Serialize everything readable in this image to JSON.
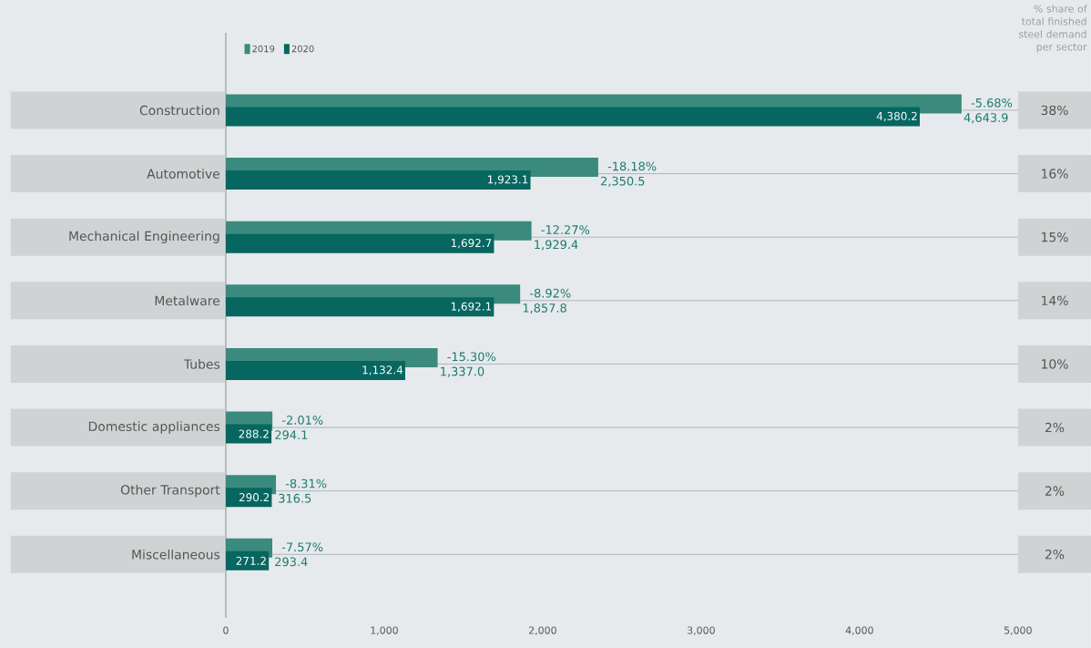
{
  "chart_data": {
    "type": "bar",
    "orientation": "horizontal",
    "categories": [
      "Construction",
      "Automotive",
      "Mechanical Engineering",
      "Metalware",
      "Tubes",
      "Domestic appliances",
      "Other Transport",
      "Miscellaneous"
    ],
    "series": [
      {
        "name": "2019",
        "color": "#3b8a7e",
        "values": [
          4643.9,
          2350.5,
          1929.4,
          1857.8,
          1337.0,
          294.1,
          316.5,
          293.4
        ],
        "value_labels": [
          "4,643.9",
          "2,350.5",
          "1,929.4",
          "1,857.8",
          "1,337.0",
          "294.1",
          "316.5",
          "293.4"
        ]
      },
      {
        "name": "2020",
        "color": "#076660",
        "values": [
          4380.2,
          1923.1,
          1692.7,
          1692.1,
          1132.4,
          288.2,
          290.2,
          271.2
        ],
        "value_labels": [
          "4,380.2",
          "1,923.1",
          "1,692.7",
          "1,692.1",
          "1,132.4",
          "288.2",
          "290.2",
          "271.2"
        ]
      }
    ],
    "xlim": [
      0,
      5000
    ],
    "xticks": [
      0,
      {
        "value": 1000,
        "label": "1,000"
      },
      {
        "value": 2000,
        "label": "2,000"
      },
      {
        "value": 3000,
        "label": "3,000"
      },
      {
        "value": 4000,
        "label": "4,000"
      },
      {
        "value": 5000,
        "label": "5,000"
      }
    ],
    "grid": "y",
    "legend": "top left",
    "annotations": [
      "% share of total finished steel demand per sector",
      {
        "text": "-5.68%",
        "x": 4643.9,
        "y": "Construction"
      },
      {
        "text": "-18.18%",
        "x": 2350.5,
        "y": "Automotive"
      },
      {
        "text": "-12.27%",
        "x": 1929.4,
        "y": "Mechanical Engineering"
      },
      {
        "text": "-8.92%",
        "x": 1857.8,
        "y": "Metalware"
      },
      {
        "text": "-15.30%",
        "x": 1337.0,
        "y": "Tubes"
      },
      {
        "text": "-2.01%",
        "x": 294.1,
        "y": "Domestic appliances"
      },
      {
        "text": "-8.31%",
        "x": 316.5,
        "y": "Other Transport"
      },
      {
        "text": "-7.57%",
        "x": 293.4,
        "y": "Miscellaneous"
      },
      "38%",
      "16%",
      "15%",
      "14%",
      "10%",
      "2%",
      "2%",
      "2%"
    ]
  }
}
